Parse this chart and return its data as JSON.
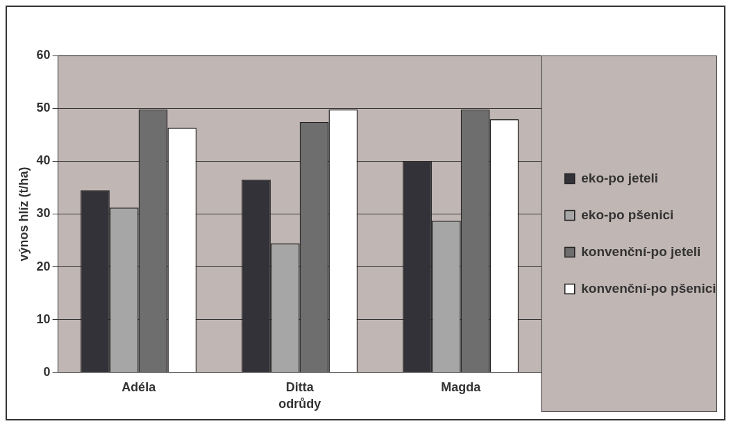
{
  "chart_data": {
    "type": "bar",
    "xlabel": "odrůdy",
    "ylabel": "výnos hlíz (t/ha)",
    "categories": [
      "Adéla",
      "Ditta",
      "Magda"
    ],
    "series": [
      {
        "name": "eko-po jeteli",
        "color": "#333238",
        "values": [
          34.5,
          36.5,
          40.0
        ]
      },
      {
        "name": "eko-po pšenici",
        "color": "#a6a6a6",
        "values": [
          31.2,
          24.4,
          28.7
        ]
      },
      {
        "name": "konvenční-po jeteli",
        "color": "#6e6e6e",
        "values": [
          49.8,
          47.4,
          49.8
        ]
      },
      {
        "name": "konvenční-po pšenici",
        "color": "#ffffff",
        "values": [
          46.3,
          49.8,
          47.9
        ]
      }
    ],
    "ylim": [
      0,
      60
    ],
    "yticks": [
      0,
      10,
      20,
      30,
      40,
      50,
      60
    ],
    "grid": "y",
    "legend": "right"
  }
}
